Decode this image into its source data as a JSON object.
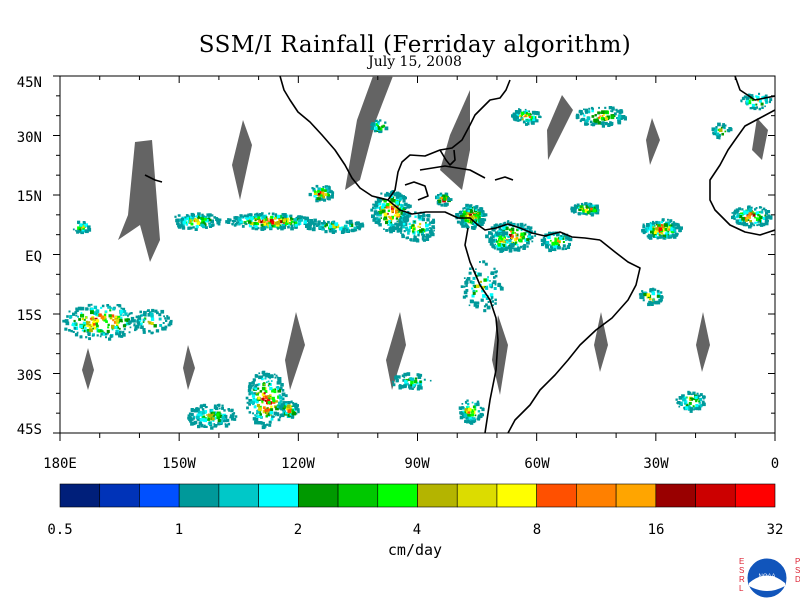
{
  "title": "SSM/I Rainfall (Ferriday algorithm)",
  "subtitle": "July 15, 2008",
  "lat_labels": [
    "45N",
    "30N",
    "15N",
    "EQ",
    "15S",
    "30S",
    "45S"
  ],
  "lat_values": [
    45,
    30,
    15,
    0,
    -15,
    -30,
    -45
  ],
  "lon_labels": [
    "180E",
    "150W",
    "120W",
    "90W",
    "60W",
    "30W",
    "0"
  ],
  "lon_values": [
    -180,
    -150,
    -120,
    -90,
    -60,
    -30,
    0
  ],
  "colorbar": {
    "labels": [
      "0.5",
      "1",
      "2",
      "4",
      "8",
      "16",
      "32"
    ],
    "colors": [
      "#001f7a",
      "#0033b8",
      "#0050ff",
      "#00999a",
      "#00c8c8",
      "#00ffff",
      "#009900",
      "#00c800",
      "#00ff00",
      "#b4b400",
      "#dcdc00",
      "#ffff00",
      "#ff5000",
      "#ff8000",
      "#ffa500",
      "#990000",
      "#cc0000",
      "#ff0000"
    ],
    "units": "cm/day"
  },
  "logo": {
    "left_text": "ESRL",
    "right_text": "PSD",
    "center_text": "NOAA"
  },
  "colors": {
    "swath_gap": "#646464",
    "coast": "#000000"
  }
}
